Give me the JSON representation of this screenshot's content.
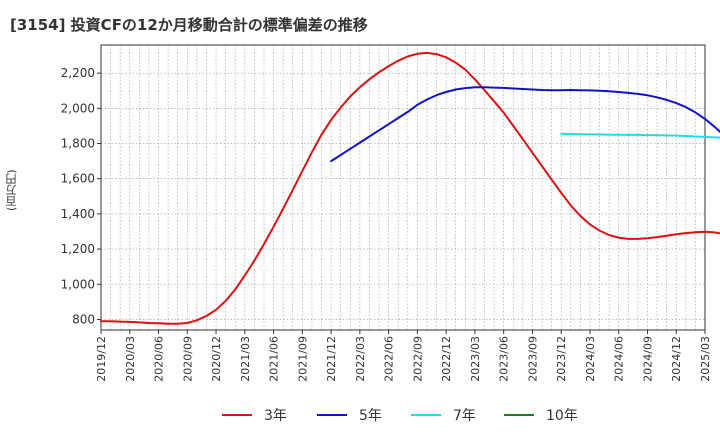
{
  "chart_data": {
    "type": "line",
    "title": "[3154]  投資CFの12か月移動合計の標準偏差の推移",
    "ylabel": "(百万円)",
    "xlabel": "",
    "ylim": [
      740,
      2360
    ],
    "yticks": [
      800,
      1000,
      1200,
      1400,
      1600,
      1800,
      2000,
      2200
    ],
    "ytick_labels": [
      "800",
      "1,000",
      "1,200",
      "1,400",
      "1,600",
      "1,800",
      "2,000",
      "2,200"
    ],
    "xtick_labels": [
      "2019/12",
      "2020/03",
      "2020/06",
      "2020/09",
      "2020/12",
      "2021/03",
      "2021/06",
      "2021/09",
      "2021/12",
      "2022/03",
      "2022/06",
      "2022/09",
      "2022/12",
      "2023/03",
      "2023/06",
      "2023/09",
      "2023/12",
      "2024/03",
      "2024/06",
      "2024/09",
      "2024/12",
      "2025/03"
    ],
    "grid": true,
    "legend_position": "bottom",
    "series": [
      {
        "name": "3年",
        "color": "#dd1111",
        "start_index": 0,
        "values": [
          790,
          790,
          788,
          786,
          783,
          780,
          778,
          776,
          776,
          780,
          795,
          820,
          855,
          905,
          970,
          1050,
          1135,
          1228,
          1327,
          1430,
          1535,
          1643,
          1750,
          1850,
          1935,
          2005,
          2068,
          2120,
          2165,
          2205,
          2240,
          2270,
          2295,
          2310,
          2315,
          2308,
          2290,
          2260,
          2220,
          2165,
          2103,
          2040,
          1975,
          1900,
          1825,
          1748,
          1672,
          1595,
          1520,
          1448,
          1388,
          1340,
          1305,
          1280,
          1265,
          1258,
          1258,
          1262,
          1268,
          1276,
          1284,
          1291,
          1296,
          1298,
          1295,
          1285,
          1268,
          1250,
          1232,
          1215,
          1198,
          1182,
          1166,
          1150,
          1135,
          1120
        ]
      },
      {
        "name": "5年",
        "color": "#1111cc",
        "start_index": 24,
        "values": [
          1700,
          1735,
          1770,
          1805,
          1840,
          1875,
          1910,
          1945,
          1980,
          2020,
          2050,
          2075,
          2093,
          2107,
          2115,
          2120,
          2120,
          2118,
          2116,
          2113,
          2110,
          2107,
          2104,
          2103,
          2103,
          2104,
          2103,
          2102,
          2100,
          2097,
          2093,
          2088,
          2082,
          2074,
          2063,
          2048,
          2030,
          2007,
          1977,
          1940,
          1895,
          1845,
          1798,
          1750,
          1703,
          1655,
          1603,
          1560
        ]
      },
      {
        "name": "7年",
        "color": "#22dddd",
        "start_index": 48,
        "values": [
          1855,
          1854,
          1853,
          1852,
          1851,
          1850,
          1850,
          1849,
          1849,
          1848,
          1847,
          1846,
          1845,
          1843,
          1840,
          1837,
          1835,
          1833,
          1829,
          1825,
          1822,
          1818
        ]
      },
      {
        "name": "10年",
        "color": "#118811",
        "start_index": 0,
        "values": []
      }
    ]
  }
}
